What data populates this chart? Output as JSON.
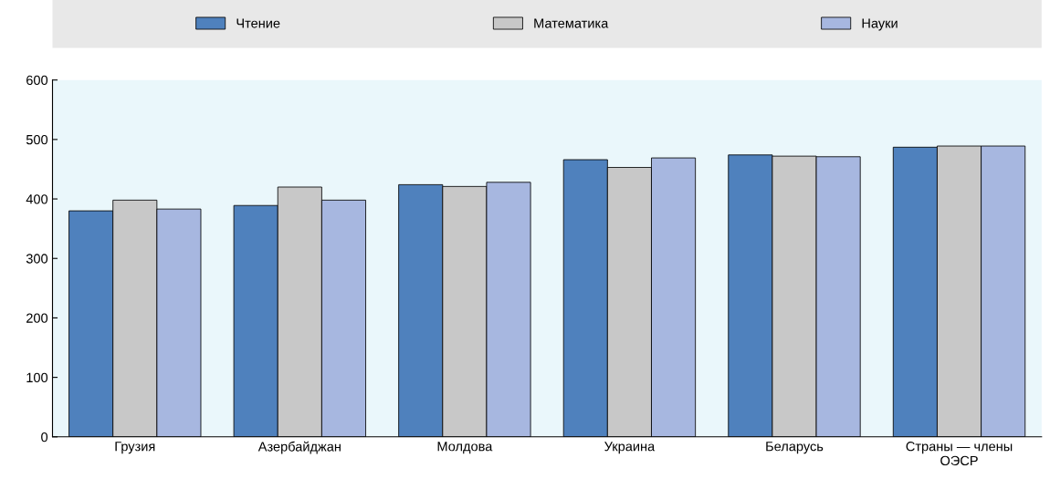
{
  "chart_data": {
    "type": "bar",
    "categories": [
      "Грузия",
      "Азербайджан",
      "Молдова",
      "Украина",
      "Беларусь",
      "Страны — члены\nОЭСР"
    ],
    "series": [
      {
        "name": "Чтение",
        "color": "#4f81bd",
        "values": [
          380,
          389,
          424,
          466,
          474,
          487
        ]
      },
      {
        "name": "Математика",
        "color": "#c8c8c8",
        "values": [
          398,
          420,
          421,
          453,
          472,
          489
        ]
      },
      {
        "name": "Науки",
        "color": "#a7b7e0",
        "values": [
          383,
          398,
          428,
          469,
          471,
          489
        ]
      }
    ],
    "ylim": [
      0,
      600
    ],
    "yticks": [
      0,
      100,
      200,
      300,
      400,
      500,
      600
    ],
    "grid": false,
    "legend": "top"
  }
}
